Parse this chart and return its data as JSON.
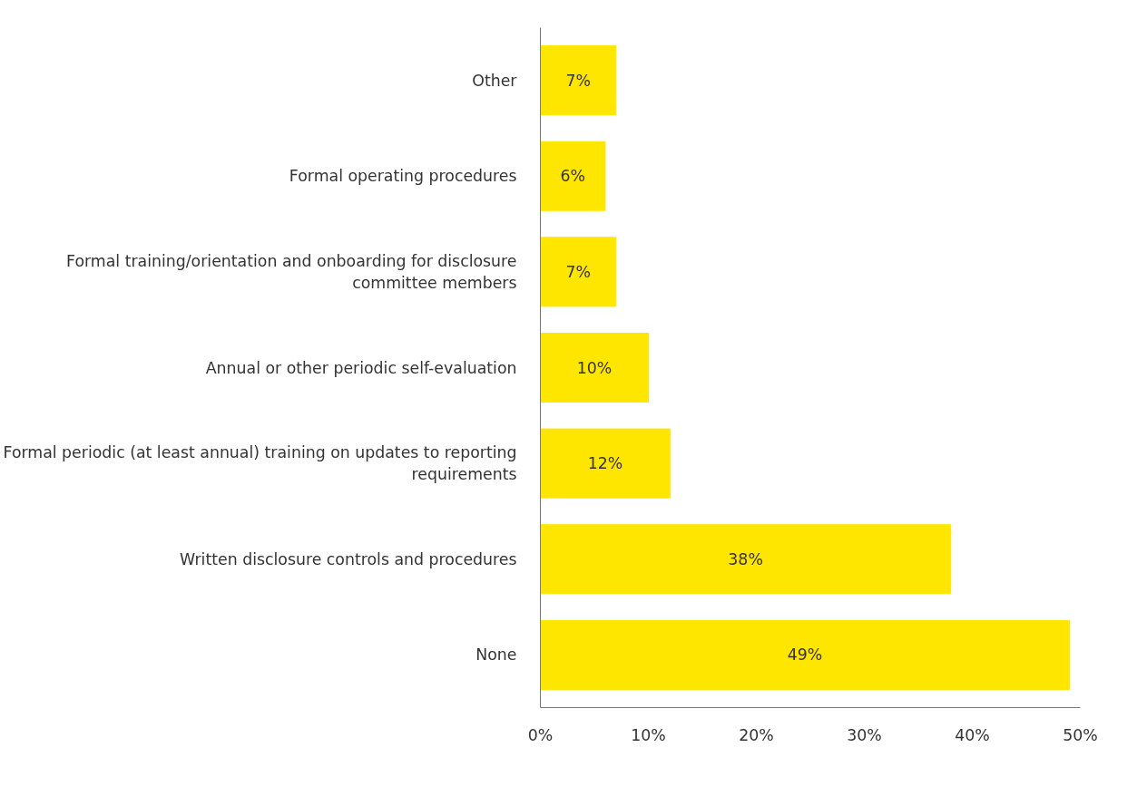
{
  "chart_data": {
    "type": "bar",
    "orientation": "horizontal",
    "categories": [
      "Other",
      "Formal operating procedures",
      "Formal training/orientation and onboarding for disclosure committee members",
      "Annual or other periodic self-evaluation",
      "Formal periodic (at least annual) training on updates to reporting requirements",
      "Written disclosure controls and procedures",
      "None"
    ],
    "values": [
      7,
      6,
      7,
      10,
      12,
      38,
      49
    ],
    "value_labels": [
      "7%",
      "6%",
      "7%",
      "10%",
      "12%",
      "38%",
      "49%"
    ],
    "color": "#ffe600",
    "xlim": [
      0,
      50
    ],
    "xticks": [
      {
        "value": 0,
        "label": "0%"
      },
      {
        "value": 10,
        "label": "10%"
      },
      {
        "value": 20,
        "label": "20%"
      },
      {
        "value": 30,
        "label": "30%"
      },
      {
        "value": 40,
        "label": "40%"
      },
      {
        "value": 50,
        "label": "50%"
      }
    ],
    "grid": false
  }
}
